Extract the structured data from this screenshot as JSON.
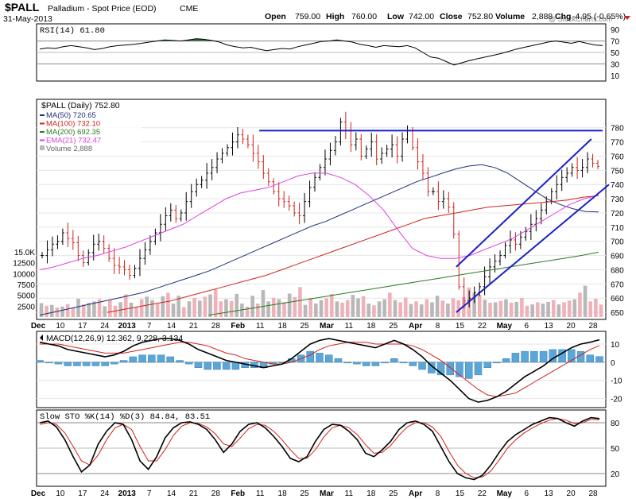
{
  "header": {
    "symbol": "$PALL",
    "name": "Palladium - Spot Price (EOD)",
    "exchange": "CME",
    "date": "31-May-2013",
    "watermark": "@ StockCharts.com",
    "open_label": "Open",
    "open": "759.00",
    "high_label": "High",
    "high": "760.00",
    "low_label": "Low",
    "low": "742.00",
    "close_label": "Close",
    "close": "752.80",
    "volume_label": "Volume",
    "volume": "2,888",
    "chg_label": "Chg",
    "chg": "-4.95 (-0.65%)"
  },
  "colors": {
    "ma50": "#1f2f7a",
    "ma100": "#d0221c",
    "ma200": "#2a7a22",
    "ema21": "#e040e0",
    "trend": "#1a22c8",
    "vol_up": "#b8b8b8",
    "vol_down": "#eeb2b8",
    "hist": "#5aa6d8",
    "signal": "#d0221c",
    "rsi_fill": "#2f6f3a"
  },
  "chart_data": [
    {
      "type": "line",
      "panel": "rsi",
      "title": "RSI(14) 61.80",
      "ylim": [
        0,
        100
      ],
      "yticks": [
        "90",
        "70",
        "50",
        "30",
        "10"
      ],
      "series": [
        {
          "name": "RSI(14)",
          "values": [
            56,
            58,
            57,
            60,
            62,
            60,
            58,
            55,
            57,
            60,
            62,
            63,
            64,
            66,
            68,
            70,
            72,
            71,
            70,
            72,
            74,
            73,
            71,
            68,
            63,
            60,
            58,
            59,
            56,
            53,
            55,
            57,
            56,
            60,
            63,
            66,
            69,
            70,
            72,
            70,
            68,
            64,
            62,
            59,
            62,
            61,
            60,
            62,
            58,
            50,
            42,
            40,
            34,
            28,
            32,
            36,
            39,
            42,
            45,
            48,
            52,
            56,
            59,
            62,
            65,
            68,
            70,
            68,
            66,
            69,
            66,
            63,
            62
          ]
        }
      ]
    },
    {
      "type": "candlestick",
      "panel": "price",
      "title": "$PALL (Daily) 752.80",
      "ylabel": "Price",
      "ylim": [
        645,
        800
      ],
      "yticks": [
        "780",
        "770",
        "760",
        "750",
        "740",
        "730",
        "720",
        "710",
        "700",
        "690",
        "680",
        "670",
        "660",
        "650"
      ],
      "xticks": [
        "Dec",
        "10",
        "17",
        "24",
        "2013",
        "7",
        "14",
        "21",
        "28",
        "Feb",
        "11",
        "18",
        "25",
        "Mar",
        "11",
        "18",
        "25",
        "Apr",
        "8",
        "15",
        "22",
        "May",
        "6",
        "13",
        "20",
        "28"
      ],
      "legend": [
        {
          "label": "MA(50) 720.65"
        },
        {
          "label": "MA(100) 732.10"
        },
        {
          "label": "MA(200) 692.35"
        },
        {
          "label": "EMA(21) 732.47"
        },
        {
          "label": "Volume 2,888"
        }
      ],
      "close": [
        690,
        694,
        698,
        700,
        706,
        702,
        699,
        690,
        685,
        692,
        698,
        700,
        695,
        688,
        683,
        682,
        680,
        676,
        681,
        688,
        694,
        700,
        706,
        712,
        718,
        722,
        716,
        720,
        728,
        735,
        740,
        743,
        748,
        752,
        758,
        762,
        766,
        770,
        775,
        772,
        768,
        762,
        756,
        748,
        742,
        735,
        730,
        728,
        725,
        720,
        718,
        728,
        738,
        745,
        752,
        758,
        764,
        770,
        784,
        778,
        768,
        772,
        760,
        765,
        770,
        758,
        762,
        765,
        768,
        760,
        772,
        778,
        766,
        756,
        748,
        735,
        735,
        728,
        730,
        724,
        705,
        668,
        658,
        660,
        664,
        668,
        675,
        682,
        686,
        690,
        697,
        701,
        698,
        703,
        707,
        712,
        716,
        722,
        728,
        735,
        740,
        745,
        748,
        752,
        750,
        752,
        758,
        755,
        752.8
      ],
      "ma50": [
        648,
        650,
        652,
        654,
        656,
        658,
        660,
        662,
        664,
        667,
        670,
        673,
        676,
        679,
        683,
        687,
        691,
        695,
        699,
        703,
        707,
        711,
        714,
        718,
        722,
        726,
        730,
        734,
        738,
        742,
        745,
        748,
        751,
        753,
        754,
        752,
        748,
        742,
        736,
        730,
        726,
        723,
        721,
        720.65
      ],
      "ma100": [
        650,
        652,
        654,
        656,
        658,
        661,
        664,
        667,
        670,
        673,
        676,
        680,
        684,
        688,
        692,
        696,
        700,
        704,
        708,
        712,
        716,
        718,
        720,
        722,
        724,
        725,
        726,
        727,
        728,
        729,
        731,
        732.1
      ],
      "ma200": [
        648,
        650,
        652,
        654,
        656,
        658,
        660,
        662,
        664,
        666,
        668,
        670,
        672,
        674,
        676,
        678,
        680,
        682,
        684,
        686,
        688,
        690,
        692.35
      ],
      "ema21": [
        680,
        682,
        685,
        688,
        690,
        693,
        696,
        700,
        704,
        708,
        712,
        718,
        724,
        730,
        734,
        736,
        738,
        742,
        746,
        748,
        748,
        745,
        740,
        732,
        722,
        708,
        695,
        690,
        688,
        688,
        690,
        694,
        698,
        702,
        708,
        714,
        720,
        726,
        730,
        732.47
      ],
      "trend_lines": [
        {
          "name": "resistance",
          "from": 778,
          "to": 778
        },
        {
          "name": "channel-upper",
          "from": 682,
          "to": 772
        },
        {
          "name": "channel-lower",
          "from": 650,
          "to": 740
        }
      ]
    },
    {
      "type": "bar",
      "panel": "volume",
      "ylabel": "Volume",
      "yticks": [
        "15.0K",
        "12500",
        "10000",
        "7500",
        "5000",
        "2500"
      ],
      "values": [
        3200,
        2600,
        2800,
        2200,
        2400,
        3000,
        2100,
        4200,
        2900,
        3300,
        3600,
        4100,
        2500,
        3900,
        2600,
        3400,
        5200,
        3300,
        2200,
        4100,
        4700,
        3900,
        3000,
        4800,
        5600,
        3100,
        4900,
        2300,
        3600,
        4400,
        3800,
        4700,
        5200,
        6400,
        3600,
        4100,
        3700,
        5300,
        3100,
        2400,
        4900,
        3100,
        6200,
        3600,
        4400,
        4100,
        3400,
        5400,
        4600,
        6900,
        2800,
        4400,
        3100,
        3900,
        4300,
        5300,
        3600,
        3300,
        3900,
        5100,
        4300,
        4800,
        3100,
        2700,
        3600,
        4100,
        5600,
        3900,
        3400,
        4500,
        3000,
        3600,
        2900,
        4100,
        3400,
        4900,
        3800,
        3100,
        4300,
        3900,
        4600,
        6800,
        5600,
        5100,
        4000,
        3300,
        3400,
        3700,
        4100,
        3300,
        3500,
        4400,
        2600,
        2900,
        3400,
        3100,
        3500,
        3900,
        2900,
        3400,
        3800,
        4100,
        5600,
        7200,
        3600,
        4200,
        2888
      ],
      "down": [
        0,
        1,
        0,
        1,
        0,
        1,
        1,
        0,
        1,
        0,
        0,
        1,
        0,
        1,
        1,
        0,
        1,
        0,
        1,
        1,
        0,
        0,
        1,
        0,
        1,
        0,
        0,
        1,
        0,
        1,
        0,
        1,
        0,
        1,
        1,
        0,
        1,
        0,
        0,
        1,
        0,
        1,
        0,
        0,
        1,
        0,
        1,
        0,
        1,
        1,
        0,
        1,
        0,
        0,
        1,
        1,
        0,
        1,
        1,
        0,
        0,
        1,
        0,
        1,
        0,
        0,
        1,
        0,
        1,
        1,
        0,
        1,
        0,
        1,
        0,
        0,
        1,
        0,
        1,
        1,
        1,
        1,
        0,
        1,
        0,
        1,
        0,
        1,
        0,
        1,
        0,
        1,
        1,
        0,
        1,
        0,
        0,
        1,
        0,
        1,
        1,
        0,
        1,
        0,
        1,
        1,
        1
      ]
    },
    {
      "type": "line",
      "panel": "macd",
      "title": "MACD(12,26,9) 12.362, 9.228, 3.134",
      "ylabel": "MACD",
      "ylim": [
        -25,
        17
      ],
      "yticks": [
        "10",
        "0",
        "-10",
        "-20"
      ],
      "series": [
        {
          "name": "MACD",
          "values": [
            11,
            10,
            9,
            7,
            6,
            5,
            4,
            3,
            4,
            6,
            9,
            11,
            12,
            13,
            13,
            12,
            10,
            7,
            5,
            3,
            1,
            0,
            -1,
            -2,
            -3,
            -2,
            -1,
            2,
            6,
            10,
            12,
            13,
            12,
            11,
            10,
            9,
            8,
            10,
            12,
            10,
            7,
            3,
            -2,
            -6,
            -10,
            -15,
            -20,
            -22,
            -21,
            -19,
            -16,
            -12,
            -8,
            -5,
            -2,
            2,
            5,
            8,
            10,
            11,
            12.362
          ]
        },
        {
          "name": "Signal",
          "values": [
            10,
            10,
            10,
            9,
            8,
            7,
            6,
            5,
            5,
            5,
            6,
            7,
            8,
            9,
            10,
            11,
            11,
            10,
            9,
            7,
            5,
            4,
            2,
            1,
            0,
            -1,
            -1,
            0,
            2,
            4,
            7,
            9,
            10,
            11,
            11,
            11,
            10,
            10,
            10,
            10,
            9,
            7,
            4,
            1,
            -3,
            -7,
            -11,
            -15,
            -18,
            -19,
            -18,
            -17,
            -14,
            -11,
            -8,
            -5,
            -2,
            1,
            4,
            7,
            9.228
          ]
        }
      ],
      "histogram": [
        1,
        0,
        -1,
        -2,
        -2,
        -2,
        -2,
        -2,
        -1,
        1,
        3,
        4,
        4,
        4,
        3,
        1,
        -1,
        -3,
        -4,
        -4,
        -4,
        -4,
        -3,
        -3,
        -3,
        -1,
        0,
        2,
        4,
        6,
        5,
        4,
        2,
        0,
        -1,
        -2,
        -2,
        0,
        2,
        0,
        -2,
        -4,
        -6,
        -7,
        -7,
        -8,
        -9,
        -7,
        -3,
        0,
        2,
        5,
        6,
        6,
        6,
        7,
        7,
        7,
        6,
        4,
        3.134
      ]
    },
    {
      "type": "line",
      "panel": "stochastic",
      "title": "Slow STO %K(14) %D(3) 84.84, 83.51",
      "ylim": [
        5,
        95
      ],
      "yticks": [
        "80",
        "50",
        "20"
      ],
      "series": [
        {
          "name": "%K(14)",
          "values": [
            80,
            82,
            75,
            60,
            40,
            22,
            30,
            55,
            70,
            80,
            78,
            60,
            35,
            25,
            40,
            62,
            74,
            80,
            81,
            78,
            72,
            60,
            45,
            55,
            70,
            78,
            80,
            74,
            64,
            52,
            38,
            34,
            40,
            58,
            72,
            78,
            77,
            70,
            60,
            44,
            40,
            48,
            58,
            72,
            80,
            82,
            78,
            70,
            52,
            34,
            20,
            15,
            13,
            18,
            30,
            45,
            58,
            66,
            72,
            78,
            82,
            86,
            85,
            80,
            76,
            82,
            86,
            84.84
          ]
        },
        {
          "name": "%D(3)",
          "values": [
            78,
            80,
            78,
            68,
            52,
            35,
            30,
            42,
            60,
            74,
            78,
            72,
            52,
            35,
            35,
            48,
            65,
            76,
            80,
            79,
            75,
            67,
            55,
            52,
            62,
            73,
            78,
            77,
            70,
            60,
            48,
            38,
            38,
            48,
            63,
            74,
            77,
            74,
            66,
            54,
            44,
            45,
            53,
            65,
            75,
            80,
            80,
            75,
            64,
            46,
            30,
            20,
            15,
            16,
            23,
            36,
            50,
            60,
            68,
            74,
            79,
            83,
            85,
            83,
            79,
            80,
            84,
            83.51
          ]
        }
      ]
    }
  ]
}
